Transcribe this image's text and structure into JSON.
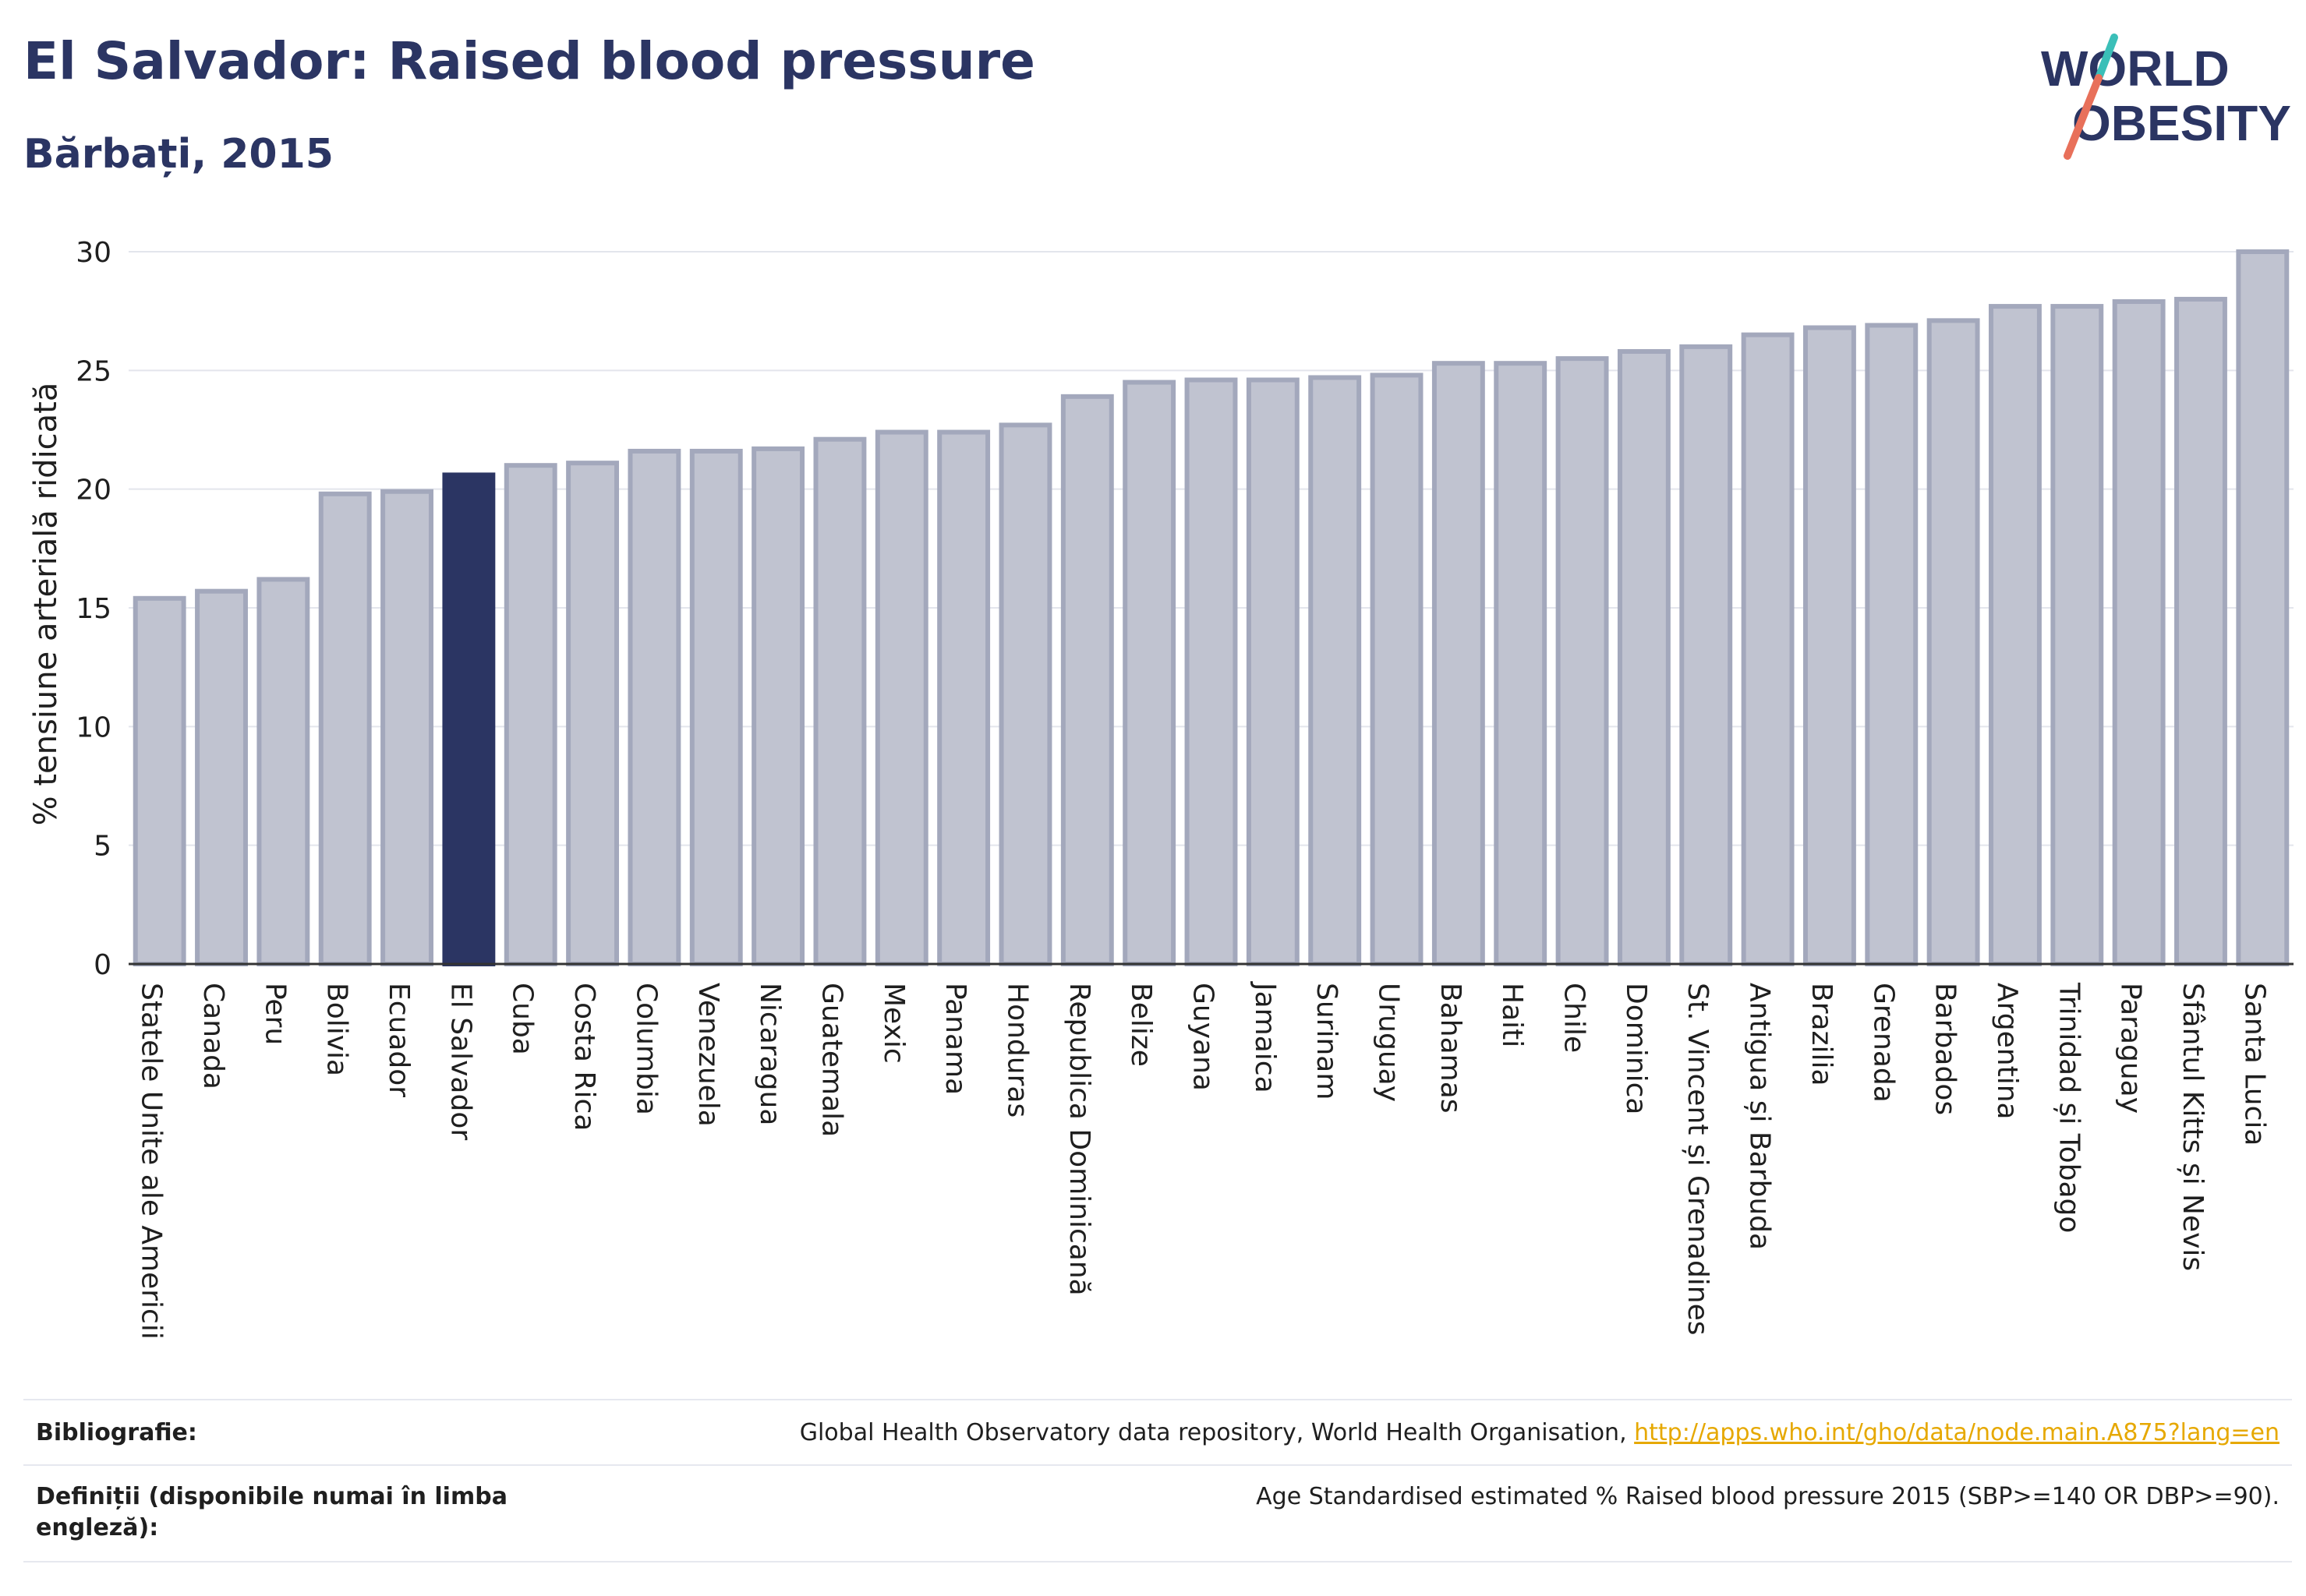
{
  "header": {
    "title": "El Salvador: Raised blood pressure",
    "subtitle": "Bărbați, 2015"
  },
  "logo": {
    "line1": "WORLD",
    "line2": "OBESITY"
  },
  "chart_data": {
    "type": "bar",
    "ylabel": "% tensiune arterială ridicată",
    "ylim": [
      0,
      30
    ],
    "yticks": [
      0,
      5,
      10,
      15,
      20,
      25,
      30
    ],
    "grid": true,
    "categories": [
      "Statele Unite ale Americii",
      "Canada",
      "Peru",
      "Bolivia",
      "Ecuador",
      "El Salvador",
      "Cuba",
      "Costa Rica",
      "Columbia",
      "Venezuela",
      "Nicaragua",
      "Guatemala",
      "Mexic",
      "Panama",
      "Honduras",
      "Republica Dominicană",
      "Belize",
      "Guyana",
      "Jamaica",
      "Surinam",
      "Uruguay",
      "Bahamas",
      "Haiti",
      "Chile",
      "Dominica",
      "St. Vincent și Grenadines",
      "Antigua și Barbuda",
      "Brazilia",
      "Grenada",
      "Barbados",
      "Argentina",
      "Trinidad și Tobago",
      "Paraguay",
      "Sfântul Kitts și Nevis",
      "Santa Lucia"
    ],
    "values": [
      15.4,
      15.7,
      16.2,
      19.8,
      19.9,
      20.6,
      21.0,
      21.1,
      21.6,
      21.6,
      21.7,
      22.1,
      22.4,
      22.4,
      22.7,
      23.9,
      24.5,
      24.6,
      24.6,
      24.7,
      24.8,
      25.3,
      25.3,
      25.5,
      25.8,
      26.0,
      26.5,
      26.8,
      26.9,
      27.1,
      27.7,
      27.7,
      27.9,
      28.0,
      30.0
    ],
    "highlight": "El Salvador",
    "colors": {
      "bar": "#c0c3d0",
      "bar_border": "#a3a8bc",
      "highlight": "#2b3563",
      "grid": "#e3e5ec",
      "axis": "#333333"
    }
  },
  "footer": {
    "bibliography_label": "Bibliografie:",
    "bibliography_text": "Global Health Observatory data repository, World Health Organisation, ",
    "bibliography_link": "http://apps.who.int/gho/data/node.main.A875?lang=en",
    "definitions_label": "Definiții (disponibile numai în limba engleză):",
    "definitions_text": "Age Standardised estimated % Raised blood pressure 2015 (SBP>=140 OR DBP>=90)."
  }
}
